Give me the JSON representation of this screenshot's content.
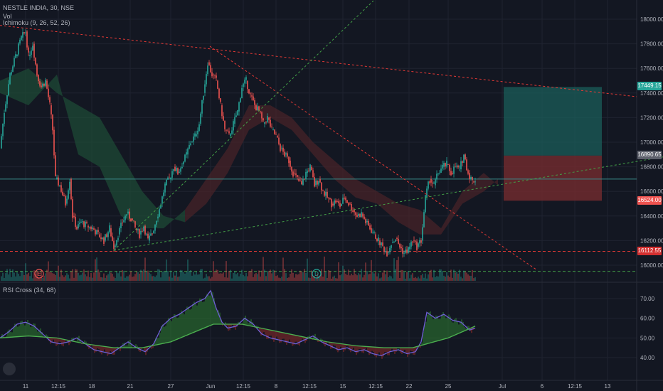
{
  "header": {
    "symbol_line": "NESTLE INDIA, 30, NSE",
    "vol_label": "Vol",
    "ichimoku_label": "Ichimoku (9, 26, 52, 26)",
    "rsi_label": "RSI Cross (34, 68)"
  },
  "price_tags": {
    "target": "17449.15",
    "entry": "16890.65",
    "stop": "16524.00",
    "support": "16112.55"
  },
  "events": {
    "earnings": "E",
    "dividend": "D"
  },
  "colors": {
    "background": "#131722",
    "up": "#26a69a",
    "down": "#ef5350",
    "target_zone": "#1b5e5a",
    "stop_zone": "#6e2a2e",
    "trend_red": "#e53935",
    "trend_green": "#43a047",
    "rsi_line": "#6f5fd6"
  },
  "chart_data": [
    {
      "type": "candlestick",
      "title": "NESTLE INDIA, 30, NSE",
      "ylim": [
        15900,
        18150
      ],
      "y_ticks": [
        "18000.00",
        "17800.00",
        "17600.00",
        "17400.00",
        "17200.00",
        "17000.00",
        "16800.00",
        "16600.00",
        "16400.00",
        "16200.00",
        "16000.00"
      ],
      "x_ticks": [
        "11",
        "12:15",
        "18",
        "21",
        "27",
        "Jun",
        "12:15",
        "8",
        "12:15",
        "15",
        "12:15",
        "22",
        "25",
        "Jul",
        "6",
        "12:15",
        "13"
      ],
      "close_path_approx": [
        [
          0,
          16950
        ],
        [
          6,
          17250
        ],
        [
          14,
          17550
        ],
        [
          22,
          17700
        ],
        [
          30,
          17850
        ],
        [
          36,
          17900
        ],
        [
          40,
          17700
        ],
        [
          46,
          17800
        ],
        [
          52,
          17550
        ],
        [
          58,
          17450
        ],
        [
          64,
          17500
        ],
        [
          70,
          17300
        ],
        [
          74,
          17100
        ],
        [
          78,
          16700
        ],
        [
          84,
          16650
        ],
        [
          92,
          16500
        ],
        [
          98,
          16700
        ],
        [
          102,
          16400
        ],
        [
          108,
          16300
        ],
        [
          114,
          16350
        ],
        [
          122,
          16320
        ],
        [
          130,
          16300
        ],
        [
          138,
          16250
        ],
        [
          146,
          16200
        ],
        [
          154,
          16300
        ],
        [
          160,
          16150
        ],
        [
          166,
          16250
        ],
        [
          172,
          16350
        ],
        [
          178,
          16420
        ],
        [
          184,
          16380
        ],
        [
          190,
          16300
        ],
        [
          196,
          16250
        ],
        [
          202,
          16320
        ],
        [
          208,
          16200
        ],
        [
          214,
          16260
        ],
        [
          220,
          16380
        ],
        [
          226,
          16500
        ],
        [
          232,
          16650
        ],
        [
          238,
          16700
        ],
        [
          244,
          16800
        ],
        [
          250,
          16750
        ],
        [
          256,
          16820
        ],
        [
          262,
          16900
        ],
        [
          268,
          17000
        ],
        [
          274,
          17050
        ],
        [
          280,
          17150
        ],
        [
          286,
          17400
        ],
        [
          292,
          17650
        ],
        [
          298,
          17550
        ],
        [
          304,
          17500
        ],
        [
          310,
          17300
        ],
        [
          316,
          17100
        ],
        [
          322,
          17050
        ],
        [
          328,
          17150
        ],
        [
          334,
          17250
        ],
        [
          340,
          17450
        ],
        [
          346,
          17500
        ],
        [
          352,
          17380
        ],
        [
          358,
          17300
        ],
        [
          364,
          17250
        ],
        [
          370,
          17150
        ],
        [
          376,
          17200
        ],
        [
          382,
          17100
        ],
        [
          388,
          17050
        ],
        [
          394,
          16950
        ],
        [
          400,
          16900
        ],
        [
          406,
          16850
        ],
        [
          412,
          16750
        ],
        [
          418,
          16700
        ],
        [
          424,
          16650
        ],
        [
          430,
          16750
        ],
        [
          436,
          16800
        ],
        [
          442,
          16650
        ],
        [
          448,
          16700
        ],
        [
          454,
          16600
        ],
        [
          460,
          16550
        ],
        [
          466,
          16500
        ],
        [
          472,
          16520
        ],
        [
          478,
          16480
        ],
        [
          484,
          16550
        ],
        [
          490,
          16500
        ],
        [
          496,
          16450
        ],
        [
          502,
          16400
        ],
        [
          508,
          16420
        ],
        [
          514,
          16350
        ],
        [
          520,
          16300
        ],
        [
          526,
          16250
        ],
        [
          532,
          16200
        ],
        [
          538,
          16150
        ],
        [
          544,
          16100
        ],
        [
          550,
          16180
        ],
        [
          556,
          16220
        ],
        [
          562,
          16150
        ],
        [
          568,
          16100
        ],
        [
          574,
          16130
        ],
        [
          580,
          16200
        ],
        [
          586,
          16150
        ],
        [
          592,
          16200
        ],
        [
          598,
          16550
        ],
        [
          604,
          16700
        ],
        [
          610,
          16650
        ],
        [
          616,
          16750
        ],
        [
          622,
          16800
        ],
        [
          628,
          16820
        ],
        [
          634,
          16750
        ],
        [
          640,
          16800
        ],
        [
          646,
          16780
        ],
        [
          652,
          16900
        ],
        [
          658,
          16750
        ],
        [
          664,
          16680
        ],
        [
          668,
          16700
        ]
      ],
      "ichimoku_cloud_approx": [
        [
          0,
          17500,
          17400
        ],
        [
          40,
          17600,
          17300
        ],
        [
          80,
          17400,
          17550
        ],
        [
          110,
          17300,
          16900
        ],
        [
          140,
          17200,
          16800
        ],
        [
          170,
          16900,
          16400
        ],
        [
          200,
          16600,
          16300
        ],
        [
          230,
          16400,
          16300
        ],
        [
          260,
          16350,
          16450
        ],
        [
          290,
          16500,
          16700
        ],
        [
          320,
          16750,
          16950
        ],
        [
          350,
          17100,
          17300
        ],
        [
          380,
          17200,
          17300
        ],
        [
          410,
          17100,
          17200
        ],
        [
          440,
          16900,
          17000
        ],
        [
          470,
          16700,
          16850
        ],
        [
          500,
          16550,
          16700
        ],
        [
          530,
          16500,
          16600
        ],
        [
          560,
          16350,
          16500
        ],
        [
          590,
          16250,
          16450
        ],
        [
          620,
          16250,
          16300
        ],
        [
          650,
          16500,
          16600
        ],
        [
          680,
          16600,
          16750
        ],
        [
          700,
          16700,
          16650
        ]
      ],
      "trendlines": [
        {
          "color": "red",
          "from": [
            0,
            17950
          ],
          "to": [
            895,
            17370
          ]
        },
        {
          "color": "red",
          "from": [
            295,
            17780
          ],
          "to": [
            755,
            15960
          ]
        },
        {
          "color": "green",
          "from": [
            160,
            16120
          ],
          "to": [
            525,
            18150
          ]
        },
        {
          "color": "green",
          "from": [
            160,
            16120
          ],
          "to": [
            932,
            16880
          ]
        }
      ],
      "horizontal_lines": [
        {
          "value": 16700,
          "color": "#3a8a8a"
        },
        {
          "value": 16112.55,
          "color": "red",
          "dashed": true
        },
        {
          "value": 15950,
          "color": "green",
          "dashed": true
        }
      ],
      "position_box": {
        "x_range": [
          708,
          846
        ],
        "target": 17449.15,
        "entry": 16890.65,
        "stop": 16524.0
      }
    },
    {
      "type": "line",
      "title": "RSI Cross (34, 68)",
      "ylim": [
        34,
        78
      ],
      "y_ticks": [
        "70.00",
        "60.00",
        "50.00",
        "40.00"
      ],
      "rsi_approx": [
        [
          0,
          50
        ],
        [
          12,
          53
        ],
        [
          24,
          57
        ],
        [
          36,
          58
        ],
        [
          48,
          56
        ],
        [
          60,
          52
        ],
        [
          72,
          48
        ],
        [
          84,
          47
        ],
        [
          96,
          48
        ],
        [
          108,
          50
        ],
        [
          120,
          47
        ],
        [
          132,
          44
        ],
        [
          144,
          43
        ],
        [
          156,
          42
        ],
        [
          168,
          45
        ],
        [
          180,
          48
        ],
        [
          192,
          45
        ],
        [
          204,
          43
        ],
        [
          216,
          47
        ],
        [
          228,
          56
        ],
        [
          240,
          60
        ],
        [
          252,
          62
        ],
        [
          264,
          65
        ],
        [
          276,
          68
        ],
        [
          288,
          70
        ],
        [
          296,
          74
        ],
        [
          304,
          65
        ],
        [
          312,
          58
        ],
        [
          320,
          55
        ],
        [
          332,
          56
        ],
        [
          344,
          60
        ],
        [
          356,
          57
        ],
        [
          368,
          52
        ],
        [
          380,
          50
        ],
        [
          392,
          49
        ],
        [
          404,
          48
        ],
        [
          416,
          47
        ],
        [
          428,
          49
        ],
        [
          440,
          51
        ],
        [
          452,
          48
        ],
        [
          464,
          46
        ],
        [
          476,
          44
        ],
        [
          488,
          45
        ],
        [
          500,
          43
        ],
        [
          512,
          44
        ],
        [
          524,
          42
        ],
        [
          536,
          41
        ],
        [
          548,
          43
        ],
        [
          560,
          44
        ],
        [
          572,
          42
        ],
        [
          584,
          43
        ],
        [
          592,
          48
        ],
        [
          600,
          63
        ],
        [
          612,
          60
        ],
        [
          624,
          62
        ],
        [
          636,
          59
        ],
        [
          648,
          58
        ],
        [
          660,
          54
        ],
        [
          668,
          55
        ]
      ],
      "signal_approx": [
        [
          0,
          50
        ],
        [
          40,
          51
        ],
        [
          80,
          50
        ],
        [
          120,
          47
        ],
        [
          160,
          45
        ],
        [
          200,
          45
        ],
        [
          240,
          48
        ],
        [
          280,
          54
        ],
        [
          300,
          57
        ],
        [
          340,
          57
        ],
        [
          380,
          54
        ],
        [
          420,
          51
        ],
        [
          460,
          48
        ],
        [
          500,
          46
        ],
        [
          540,
          45
        ],
        [
          580,
          45
        ],
        [
          600,
          47
        ],
        [
          630,
          50
        ],
        [
          668,
          56
        ]
      ]
    }
  ]
}
